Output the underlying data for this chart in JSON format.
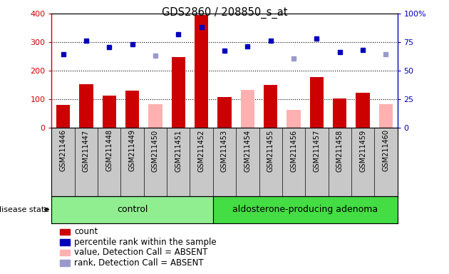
{
  "title": "GDS2860 / 208850_s_at",
  "samples": [
    "GSM211446",
    "GSM211447",
    "GSM211448",
    "GSM211449",
    "GSM211450",
    "GSM211451",
    "GSM211452",
    "GSM211453",
    "GSM211454",
    "GSM211455",
    "GSM211456",
    "GSM211457",
    "GSM211458",
    "GSM211459",
    "GSM211460"
  ],
  "count_values": [
    78,
    152,
    112,
    130,
    null,
    248,
    395,
    107,
    null,
    150,
    null,
    178,
    103,
    122,
    null
  ],
  "absent_value_bars": [
    null,
    null,
    null,
    null,
    82,
    null,
    null,
    null,
    132,
    null,
    62,
    null,
    null,
    null,
    82
  ],
  "percentile_rank_dark": [
    258,
    305,
    282,
    293,
    null,
    327,
    352,
    270,
    285,
    305,
    null,
    312,
    265,
    272,
    null
  ],
  "percentile_rank_light": [
    null,
    null,
    null,
    null,
    253,
    null,
    null,
    null,
    null,
    null,
    242,
    null,
    null,
    null,
    257
  ],
  "n_control": 7,
  "n_adenoma": 8,
  "ylim_left": [
    0,
    400
  ],
  "ylim_right": [
    0,
    100
  ],
  "yticks_left": [
    0,
    100,
    200,
    300,
    400
  ],
  "yticks_right": [
    0,
    25,
    50,
    75,
    100
  ],
  "ytick_labels_right": [
    "0",
    "25",
    "50",
    "75",
    "100%"
  ],
  "bar_color_red": "#cc0000",
  "bar_color_pink": "#ffb0b0",
  "dot_color_dark_blue": "#0000bb",
  "dot_color_light_blue": "#9999cc",
  "bg_xticklabels": "#c8c8c8",
  "bg_control": "#90ee90",
  "bg_adenoma": "#44dd44",
  "legend_items": [
    "count",
    "percentile rank within the sample",
    "value, Detection Call = ABSENT",
    "rank, Detection Call = ABSENT"
  ],
  "legend_colors": [
    "#cc0000",
    "#0000bb",
    "#ffb0b0",
    "#9999cc"
  ]
}
